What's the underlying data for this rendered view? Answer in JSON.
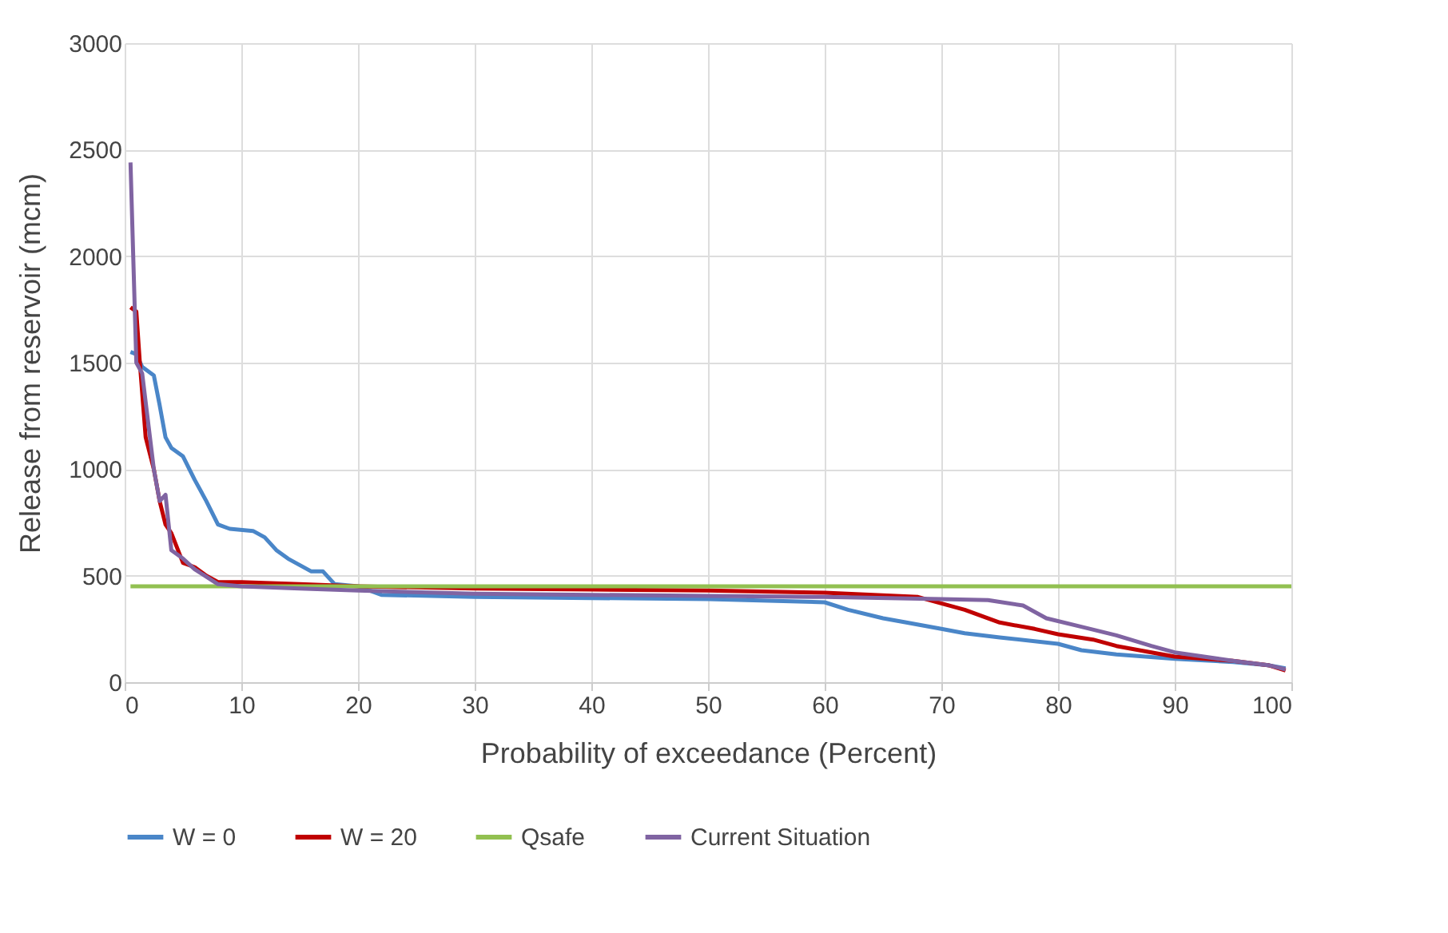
{
  "chart_data": {
    "type": "line",
    "xlabel": "Probability of exceedance (Percent)",
    "ylabel": "Release from reservoir (mcm)",
    "xlim": [
      0,
      100
    ],
    "xticks": [
      0,
      10,
      20,
      30,
      40,
      50,
      60,
      70,
      80,
      90,
      100
    ],
    "ylim": [
      0,
      3000
    ],
    "yticks": [
      0,
      500,
      1000,
      1500,
      2000,
      2500,
      3000
    ],
    "grid": true,
    "legend": "bottom",
    "marker": "none",
    "line_style": "solid",
    "series": [
      {
        "name": "W = 0",
        "color": "#4a86c8",
        "x": [
          0.5,
          1,
          1.5,
          2.5,
          3,
          3.5,
          4,
          5,
          6,
          7,
          8,
          9,
          11,
          12,
          13,
          14,
          15,
          16,
          17,
          18,
          20,
          22,
          30,
          40,
          50,
          60,
          62,
          65,
          67,
          70,
          72,
          75,
          80,
          82,
          85,
          90,
          95,
          98,
          99.5
        ],
        "values": [
          1550,
          1540,
          1480,
          1440,
          1300,
          1150,
          1100,
          1060,
          950,
          850,
          740,
          720,
          710,
          680,
          620,
          580,
          550,
          520,
          520,
          460,
          450,
          410,
          400,
          395,
          390,
          375,
          340,
          300,
          280,
          250,
          230,
          210,
          180,
          150,
          130,
          110,
          95,
          80,
          65
        ]
      },
      {
        "name": "W = 20",
        "color": "#c00000",
        "x": [
          0.5,
          1,
          1.3,
          1.8,
          2.5,
          3,
          3.5,
          4,
          5,
          6,
          7,
          8,
          10,
          15,
          20,
          30,
          40,
          50,
          60,
          68,
          70,
          72,
          75,
          78,
          80,
          83,
          85,
          88,
          90,
          95,
          98,
          99.5
        ],
        "values": [
          1760,
          1740,
          1500,
          1150,
          1000,
          850,
          740,
          700,
          560,
          540,
          500,
          470,
          470,
          460,
          450,
          440,
          435,
          430,
          420,
          400,
          370,
          340,
          280,
          250,
          225,
          200,
          170,
          140,
          120,
          100,
          80,
          55
        ]
      },
      {
        "name": "Qsafe",
        "color": "#92c051",
        "x": [
          0.5,
          100
        ],
        "values": [
          450,
          450
        ]
      },
      {
        "name": "Current Situation",
        "color": "#8064a2",
        "x": [
          0.5,
          1,
          1.5,
          2.5,
          3,
          3.5,
          4,
          5,
          6,
          8,
          10,
          15,
          20,
          30,
          40,
          50,
          60,
          70,
          74,
          77,
          79,
          82,
          85,
          88,
          90,
          95,
          98,
          99.5
        ],
        "values": [
          2440,
          1500,
          1450,
          1000,
          850,
          880,
          620,
          580,
          530,
          460,
          450,
          440,
          430,
          415,
          410,
          405,
          400,
          390,
          385,
          360,
          300,
          260,
          220,
          170,
          140,
          100,
          80,
          60
        ]
      }
    ]
  }
}
